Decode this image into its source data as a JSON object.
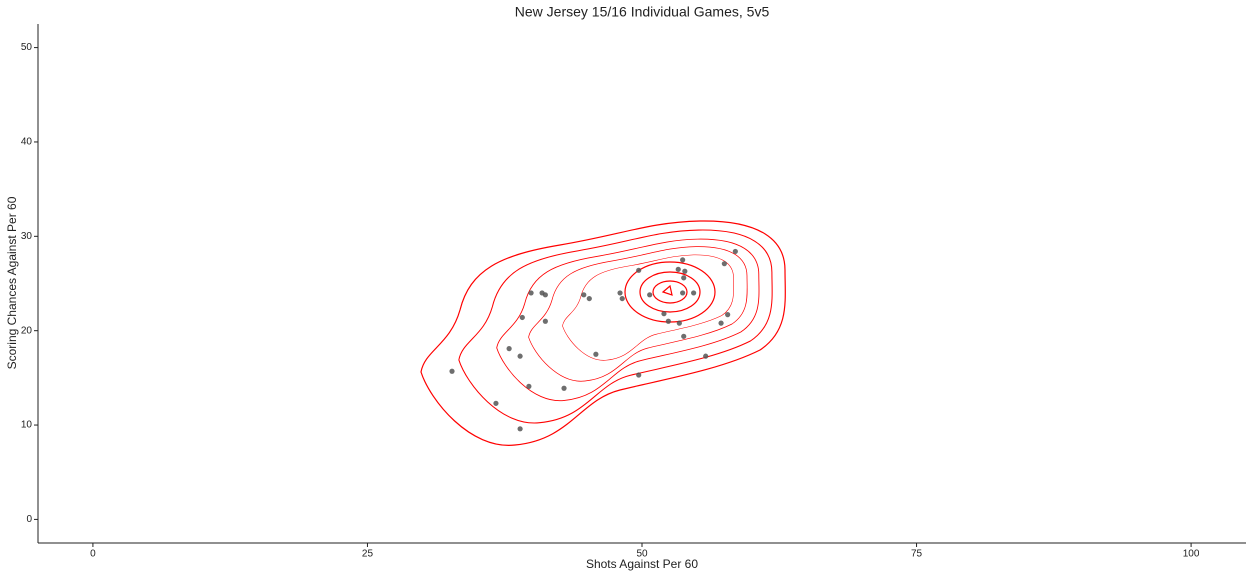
{
  "chart_data": {
    "type": "scatter",
    "title": "New Jersey 15/16 Individual Games, 5v5",
    "x_label": "Shots Against Per 60",
    "y_label": "Scoring Chances Against Per 60",
    "color": "#555555",
    "contour_color": "#ff0000",
    "grid": false,
    "xlim": [
      -5,
      105
    ],
    "ylim": [
      -2.5,
      52.5
    ],
    "xticks": [
      0,
      25,
      50,
      75,
      100
    ],
    "yticks": [
      0,
      10,
      20,
      30,
      40,
      50
    ],
    "x": [
      32.7,
      36.7,
      37.9,
      38.9,
      38.9,
      39.1,
      39.7,
      39.9,
      40.9,
      41.2,
      41.2,
      42.9,
      44.7,
      45.2,
      45.8,
      48.0,
      48.2,
      49.7,
      49.7,
      50.7,
      52.0,
      52.4,
      53.3,
      53.4,
      53.7,
      53.7,
      53.8,
      53.8,
      53.9,
      54.7,
      55.8,
      57.2,
      57.5,
      57.8,
      58.5
    ],
    "y": [
      15.7,
      12.3,
      18.1,
      17.3,
      9.6,
      21.4,
      14.1,
      24.0,
      24.0,
      23.8,
      21.0,
      13.9,
      23.8,
      23.4,
      17.5,
      24.0,
      23.4,
      26.4,
      15.3,
      23.8,
      21.8,
      21.0,
      26.5,
      20.8,
      27.5,
      24.0,
      25.6,
      19.4,
      26.3,
      24.0,
      17.3,
      20.8,
      27.1,
      21.7,
      28.4
    ]
  }
}
